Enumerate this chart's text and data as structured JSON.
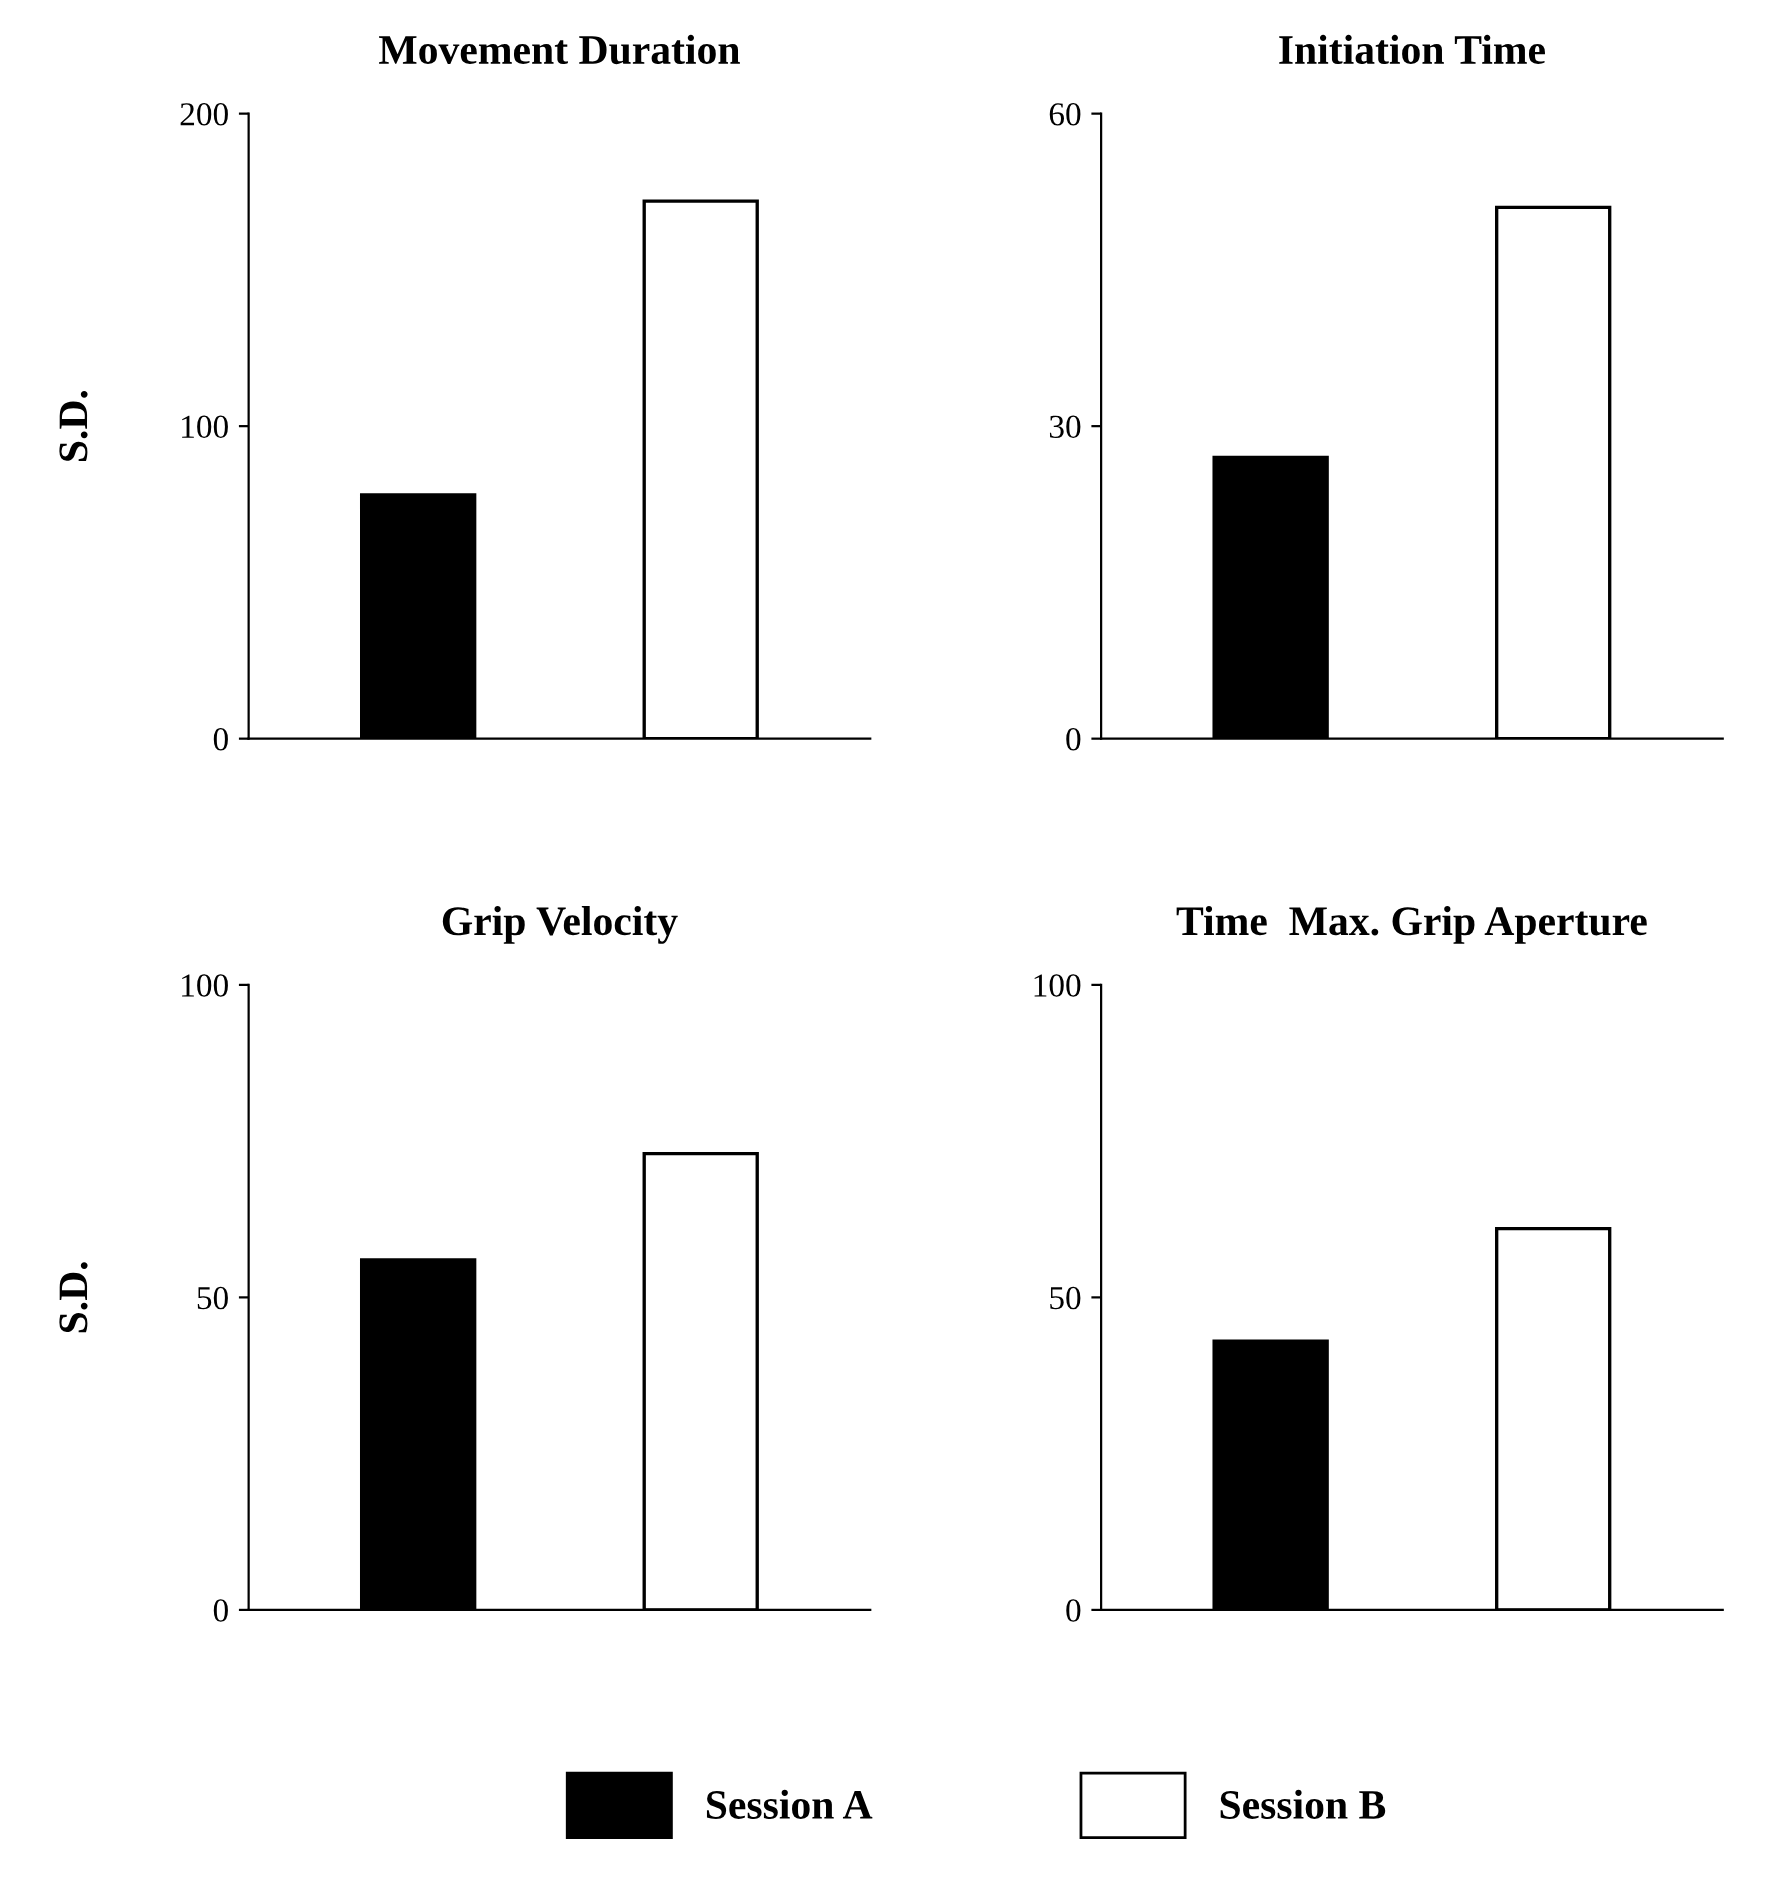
{
  "chart_data": [
    {
      "type": "bar",
      "title": "Movement Duration",
      "ylabel": "S.D.",
      "categories": [
        null,
        null
      ],
      "ylim": [
        0,
        200
      ],
      "yticks": [
        0,
        100,
        200
      ],
      "tick_labels": "y",
      "legend": "bottom",
      "series": [
        {
          "name": "Session A",
          "color": "#000000",
          "values": [
            78,
            null
          ]
        },
        {
          "name": "Session B",
          "color": "#ffffff",
          "values": [
            null,
            172
          ]
        }
      ]
    },
    {
      "type": "bar",
      "title": "Initiation Time",
      "categories": [
        null,
        null
      ],
      "ylim": [
        0,
        60
      ],
      "yticks": [
        0,
        30,
        60
      ],
      "tick_labels": "y",
      "legend": "bottom",
      "series": [
        {
          "name": "Session A",
          "color": "#000000",
          "values": [
            27,
            null
          ]
        },
        {
          "name": "Session B",
          "color": "#ffffff",
          "values": [
            null,
            51
          ]
        }
      ]
    },
    {
      "type": "bar",
      "title": "Grip Velocity",
      "ylabel": "S.D.",
      "categories": [
        null,
        null
      ],
      "ylim": [
        0,
        100
      ],
      "yticks": [
        0,
        50,
        100
      ],
      "tick_labels": "y",
      "legend": "bottom",
      "series": [
        {
          "name": "Session A",
          "color": "#000000",
          "values": [
            56,
            null
          ]
        },
        {
          "name": "Session B",
          "color": "#ffffff",
          "values": [
            null,
            73
          ]
        }
      ]
    },
    {
      "type": "bar",
      "title": "Time  Max. Grip Aperture",
      "categories": [
        null,
        null
      ],
      "ylim": [
        0,
        100
      ],
      "yticks": [
        0,
        50,
        100
      ],
      "tick_labels": "y",
      "legend": "bottom",
      "series": [
        {
          "name": "Session A",
          "color": "#000000",
          "values": [
            43,
            null
          ]
        },
        {
          "name": "Session B",
          "color": "#ffffff",
          "values": [
            null,
            61
          ]
        }
      ]
    }
  ]
}
